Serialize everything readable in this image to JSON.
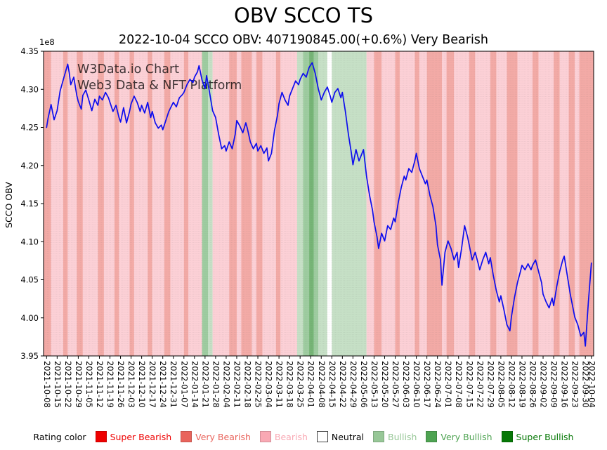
{
  "title": "OBV SCCO TS",
  "subtitle": "2022-10-04 SCCO OBV: 407190845.00(+0.6%) Very Bearish",
  "watermark": {
    "line1": "W3Data.io Chart",
    "line2": "Web3 Data & NFT Platform"
  },
  "legend": {
    "label": "Rating color",
    "entries": [
      {
        "key": "super_bearish",
        "label": "Super Bearish",
        "color": "#ee0000"
      },
      {
        "key": "very_bearish",
        "label": "Very Bearish",
        "color": "#e9645c"
      },
      {
        "key": "bearish",
        "label": "Bearish",
        "color": "#f9a9b4"
      },
      {
        "key": "neutral",
        "label": "Neutral",
        "color": "#ffffff"
      },
      {
        "key": "bullish",
        "label": "Bullish",
        "color": "#97c797"
      },
      {
        "key": "very_bullish",
        "label": "Very Bullish",
        "color": "#4ea352"
      },
      {
        "key": "super_bullish",
        "label": "Super Bullish",
        "color": "#067806"
      }
    ]
  },
  "chart_data": {
    "type": "line",
    "title": "OBV SCCO TS",
    "xlabel": "",
    "ylabel": "SCCO OBV",
    "y_offset_label": "1e8",
    "ylim": [
      3.95,
      4.35
    ],
    "yticks": [
      "3.95",
      "4.00",
      "4.05",
      "4.10",
      "4.15",
      "4.20",
      "4.25",
      "4.30",
      "4.35"
    ],
    "x_unit": "days since 2021-10-08",
    "xlim": [
      -2,
      362.5
    ],
    "x_tick_days": [
      0,
      7,
      14,
      21,
      28,
      35,
      42,
      49,
      56,
      63,
      70,
      77,
      84,
      91,
      98,
      105,
      112,
      119,
      126,
      133,
      140,
      147,
      154,
      161,
      168,
      175,
      182,
      189,
      196,
      203,
      210,
      217,
      224,
      231,
      238,
      245,
      252,
      259,
      266,
      273,
      280,
      287,
      294,
      301,
      308,
      315,
      322,
      329,
      336,
      343,
      350,
      357,
      361
    ],
    "x_tick_labels": [
      "2021-10-08",
      "2021-10-15",
      "2021-10-22",
      "2021-10-29",
      "2021-11-05",
      "2021-11-12",
      "2021-11-19",
      "2021-11-26",
      "2021-12-03",
      "2021-12-10",
      "2021-12-17",
      "2021-12-24",
      "2021-12-31",
      "2022-01-07",
      "2022-01-14",
      "2022-01-21",
      "2022-01-28",
      "2022-02-04",
      "2022-02-11",
      "2022-02-18",
      "2022-02-25",
      "2022-03-04",
      "2022-03-11",
      "2022-03-18",
      "2022-03-25",
      "2022-04-01",
      "2022-04-08",
      "2022-04-15",
      "2022-04-22",
      "2022-04-29",
      "2022-05-06",
      "2022-05-13",
      "2022-05-20",
      "2022-05-27",
      "2022-06-03",
      "2022-06-10",
      "2022-06-17",
      "2022-06-24",
      "2022-07-01",
      "2022-07-08",
      "2022-07-15",
      "2022-07-22",
      "2022-07-29",
      "2022-08-05",
      "2022-08-12",
      "2022-08-19",
      "2022-08-26",
      "2022-09-02",
      "2022-09-09",
      "2022-09-16",
      "2022-09-23",
      "2022-09-30",
      "2022-10-04"
    ],
    "grid": false,
    "legend_position": "bottom",
    "band_opacity": 0.55,
    "rating_colors": {
      "super_bearish": "#ee0000",
      "very_bearish": "#e9645c",
      "bearish": "#f9a9b4",
      "neutral": "#ffffff",
      "bullish": "#97c797",
      "very_bullish": "#4ea352",
      "super_bullish": "#067806"
    },
    "bands": [
      [
        0,
        3,
        "very_bearish"
      ],
      [
        3,
        11,
        "bearish"
      ],
      [
        11,
        14,
        "very_bearish"
      ],
      [
        14,
        20,
        "bearish"
      ],
      [
        20,
        24,
        "very_bearish"
      ],
      [
        24,
        34,
        "bearish"
      ],
      [
        34,
        38,
        "very_bearish"
      ],
      [
        38,
        45,
        "bearish"
      ],
      [
        45,
        48,
        "very_bearish"
      ],
      [
        48,
        55,
        "bearish"
      ],
      [
        55,
        58,
        "very_bearish"
      ],
      [
        58,
        67,
        "bearish"
      ],
      [
        67,
        70,
        "very_bearish"
      ],
      [
        70,
        78,
        "bearish"
      ],
      [
        78,
        82,
        "very_bearish"
      ],
      [
        82,
        91,
        "bearish"
      ],
      [
        91,
        94,
        "very_bearish"
      ],
      [
        94,
        103,
        "bearish"
      ],
      [
        103,
        107,
        "very_bullish"
      ],
      [
        107,
        110,
        "bullish"
      ],
      [
        110,
        121,
        "bearish"
      ],
      [
        121,
        126,
        "very_bearish"
      ],
      [
        126,
        129,
        "bearish"
      ],
      [
        129,
        136,
        "very_bearish"
      ],
      [
        136,
        139,
        "bearish"
      ],
      [
        139,
        143,
        "very_bearish"
      ],
      [
        143,
        152,
        "bearish"
      ],
      [
        152,
        155,
        "very_bearish"
      ],
      [
        155,
        166,
        "bearish"
      ],
      [
        166,
        170,
        "bullish"
      ],
      [
        170,
        174,
        "very_bullish"
      ],
      [
        174,
        177,
        "super_bullish"
      ],
      [
        177,
        180,
        "very_bullish"
      ],
      [
        180,
        186,
        "bullish"
      ],
      [
        186,
        189,
        "neutral"
      ],
      [
        189,
        212,
        "bullish"
      ],
      [
        212,
        217,
        "bearish"
      ],
      [
        217,
        222,
        "very_bearish"
      ],
      [
        222,
        231,
        "bearish"
      ],
      [
        231,
        234,
        "very_bearish"
      ],
      [
        234,
        244,
        "bearish"
      ],
      [
        244,
        247,
        "very_bearish"
      ],
      [
        247,
        252,
        "bearish"
      ],
      [
        252,
        262,
        "very_bearish"
      ],
      [
        262,
        265,
        "bearish"
      ],
      [
        265,
        270,
        "very_bearish"
      ],
      [
        270,
        280,
        "bearish"
      ],
      [
        280,
        284,
        "very_bearish"
      ],
      [
        284,
        294,
        "bearish"
      ],
      [
        294,
        298,
        "very_bearish"
      ],
      [
        298,
        305,
        "bearish"
      ],
      [
        305,
        312,
        "very_bearish"
      ],
      [
        312,
        322,
        "bearish"
      ],
      [
        322,
        326,
        "very_bearish"
      ],
      [
        326,
        336,
        "bearish"
      ],
      [
        336,
        340,
        "very_bearish"
      ],
      [
        340,
        346,
        "bearish"
      ],
      [
        346,
        350,
        "very_bearish"
      ],
      [
        350,
        353,
        "bearish"
      ],
      [
        353,
        361.5,
        "very_bearish"
      ]
    ],
    "line": {
      "name": "SCCO OBV (x1e8)",
      "color": "#0d0dee",
      "points": [
        [
          0,
          4.25
        ],
        [
          1,
          4.262
        ],
        [
          3,
          4.28
        ],
        [
          5,
          4.26
        ],
        [
          7,
          4.272
        ],
        [
          9,
          4.298
        ],
        [
          11,
          4.312
        ],
        [
          13,
          4.326
        ],
        [
          14,
          4.333
        ],
        [
          15,
          4.322
        ],
        [
          16,
          4.306
        ],
        [
          18,
          4.316
        ],
        [
          20,
          4.292
        ],
        [
          21,
          4.284
        ],
        [
          23,
          4.274
        ],
        [
          24,
          4.292
        ],
        [
          26,
          4.299
        ],
        [
          28,
          4.286
        ],
        [
          30,
          4.272
        ],
        [
          32,
          4.287
        ],
        [
          34,
          4.279
        ],
        [
          35,
          4.291
        ],
        [
          37,
          4.286
        ],
        [
          39,
          4.296
        ],
        [
          41,
          4.289
        ],
        [
          42,
          4.283
        ],
        [
          44,
          4.271
        ],
        [
          46,
          4.279
        ],
        [
          48,
          4.263
        ],
        [
          49,
          4.257
        ],
        [
          51,
          4.276
        ],
        [
          53,
          4.256
        ],
        [
          55,
          4.271
        ],
        [
          56,
          4.281
        ],
        [
          58,
          4.291
        ],
        [
          60,
          4.283
        ],
        [
          62,
          4.271
        ],
        [
          63,
          4.279
        ],
        [
          65,
          4.269
        ],
        [
          67,
          4.283
        ],
        [
          69,
          4.263
        ],
        [
          70,
          4.271
        ],
        [
          72,
          4.256
        ],
        [
          74,
          4.249
        ],
        [
          76,
          4.253
        ],
        [
          77,
          4.247
        ],
        [
          79,
          4.259
        ],
        [
          81,
          4.271
        ],
        [
          83,
          4.279
        ],
        [
          84,
          4.283
        ],
        [
          86,
          4.277
        ],
        [
          88,
          4.289
        ],
        [
          90,
          4.293
        ],
        [
          91,
          4.296
        ],
        [
          93,
          4.306
        ],
        [
          95,
          4.313
        ],
        [
          97,
          4.309
        ],
        [
          98,
          4.316
        ],
        [
          100,
          4.323
        ],
        [
          101,
          4.331
        ],
        [
          103,
          4.312
        ],
        [
          105,
          4.301
        ],
        [
          106,
          4.318
        ],
        [
          108,
          4.296
        ],
        [
          110,
          4.272
        ],
        [
          112,
          4.263
        ],
        [
          114,
          4.241
        ],
        [
          116,
          4.222
        ],
        [
          118,
          4.226
        ],
        [
          119,
          4.219
        ],
        [
          121,
          4.231
        ],
        [
          123,
          4.222
        ],
        [
          125,
          4.241
        ],
        [
          126,
          4.259
        ],
        [
          128,
          4.252
        ],
        [
          130,
          4.243
        ],
        [
          132,
          4.256
        ],
        [
          133,
          4.249
        ],
        [
          135,
          4.231
        ],
        [
          137,
          4.222
        ],
        [
          139,
          4.229
        ],
        [
          140,
          4.219
        ],
        [
          142,
          4.226
        ],
        [
          144,
          4.216
        ],
        [
          146,
          4.223
        ],
        [
          147,
          4.206
        ],
        [
          149,
          4.216
        ],
        [
          151,
          4.246
        ],
        [
          153,
          4.266
        ],
        [
          154,
          4.281
        ],
        [
          156,
          4.296
        ],
        [
          158,
          4.286
        ],
        [
          160,
          4.279
        ],
        [
          161,
          4.291
        ],
        [
          163,
          4.301
        ],
        [
          165,
          4.311
        ],
        [
          167,
          4.306
        ],
        [
          168,
          4.313
        ],
        [
          170,
          4.321
        ],
        [
          172,
          4.316
        ],
        [
          174,
          4.329
        ],
        [
          176,
          4.335
        ],
        [
          178,
          4.321
        ],
        [
          180,
          4.301
        ],
        [
          182,
          4.286
        ],
        [
          184,
          4.296
        ],
        [
          186,
          4.303
        ],
        [
          188,
          4.291
        ],
        [
          189,
          4.283
        ],
        [
          191,
          4.296
        ],
        [
          193,
          4.301
        ],
        [
          195,
          4.289
        ],
        [
          196,
          4.296
        ],
        [
          198,
          4.271
        ],
        [
          200,
          4.241
        ],
        [
          202,
          4.216
        ],
        [
          203,
          4.201
        ],
        [
          205,
          4.221
        ],
        [
          207,
          4.206
        ],
        [
          209,
          4.216
        ],
        [
          210,
          4.221
        ],
        [
          212,
          4.186
        ],
        [
          214,
          4.161
        ],
        [
          216,
          4.141
        ],
        [
          217,
          4.126
        ],
        [
          219,
          4.106
        ],
        [
          220,
          4.091
        ],
        [
          222,
          4.111
        ],
        [
          224,
          4.101
        ],
        [
          226,
          4.121
        ],
        [
          228,
          4.116
        ],
        [
          230,
          4.131
        ],
        [
          231,
          4.126
        ],
        [
          233,
          4.151
        ],
        [
          235,
          4.171
        ],
        [
          237,
          4.186
        ],
        [
          238,
          4.181
        ],
        [
          240,
          4.196
        ],
        [
          242,
          4.191
        ],
        [
          244,
          4.206
        ],
        [
          245,
          4.216
        ],
        [
          247,
          4.196
        ],
        [
          249,
          4.186
        ],
        [
          251,
          4.176
        ],
        [
          252,
          4.181
        ],
        [
          254,
          4.161
        ],
        [
          256,
          4.146
        ],
        [
          258,
          4.121
        ],
        [
          259,
          4.096
        ],
        [
          261,
          4.076
        ],
        [
          262,
          4.043
        ],
        [
          264,
          4.086
        ],
        [
          266,
          4.101
        ],
        [
          268,
          4.091
        ],
        [
          270,
          4.076
        ],
        [
          272,
          4.086
        ],
        [
          273,
          4.066
        ],
        [
          275,
          4.091
        ],
        [
          277,
          4.121
        ],
        [
          279,
          4.106
        ],
        [
          280,
          4.096
        ],
        [
          282,
          4.076
        ],
        [
          284,
          4.086
        ],
        [
          286,
          4.071
        ],
        [
          287,
          4.063
        ],
        [
          289,
          4.076
        ],
        [
          291,
          4.086
        ],
        [
          293,
          4.071
        ],
        [
          294,
          4.079
        ],
        [
          296,
          4.056
        ],
        [
          298,
          4.036
        ],
        [
          300,
          4.021
        ],
        [
          301,
          4.029
        ],
        [
          303,
          4.011
        ],
        [
          305,
          3.991
        ],
        [
          307,
          3.983
        ],
        [
          308,
          4.001
        ],
        [
          310,
          4.026
        ],
        [
          312,
          4.046
        ],
        [
          314,
          4.061
        ],
        [
          315,
          4.069
        ],
        [
          317,
          4.063
        ],
        [
          319,
          4.071
        ],
        [
          321,
          4.063
        ],
        [
          322,
          4.069
        ],
        [
          324,
          4.076
        ],
        [
          326,
          4.061
        ],
        [
          328,
          4.046
        ],
        [
          329,
          4.031
        ],
        [
          331,
          4.021
        ],
        [
          333,
          4.013
        ],
        [
          335,
          4.026
        ],
        [
          336,
          4.016
        ],
        [
          338,
          4.041
        ],
        [
          340,
          4.061
        ],
        [
          342,
          4.076
        ],
        [
          343,
          4.081
        ],
        [
          345,
          4.056
        ],
        [
          347,
          4.031
        ],
        [
          349,
          4.011
        ],
        [
          350,
          4.001
        ],
        [
          352,
          3.991
        ],
        [
          354,
          3.976
        ],
        [
          356,
          3.981
        ],
        [
          357,
          3.963
        ],
        [
          359,
          4.021
        ],
        [
          361,
          4.0719
        ]
      ]
    }
  }
}
